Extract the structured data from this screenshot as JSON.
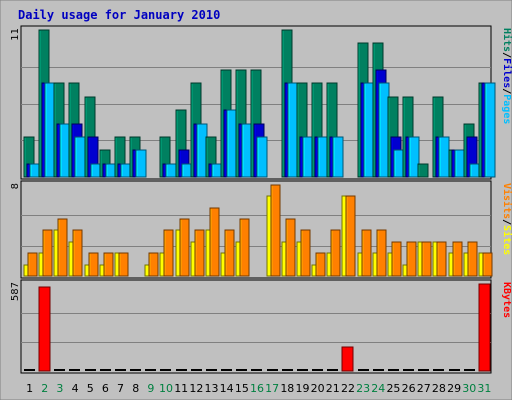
{
  "chart_data": {
    "title": "Daily usage for January 2010",
    "days": [
      "1",
      "2",
      "3",
      "4",
      "5",
      "6",
      "7",
      "8",
      "9",
      "10",
      "11",
      "12",
      "13",
      "14",
      "15",
      "16",
      "17",
      "18",
      "19",
      "20",
      "21",
      "22",
      "23",
      "24",
      "25",
      "26",
      "27",
      "28",
      "29",
      "30",
      "31"
    ],
    "weekend_days": [
      2,
      3,
      9,
      10,
      16,
      17,
      23,
      24,
      30,
      31
    ],
    "panels": [
      {
        "type": "bar",
        "ymax_label": "11",
        "ymax": 11,
        "series_labels": [
          {
            "name": "Pages",
            "color": "#00bfff"
          },
          {
            "name": "Files",
            "color": "#0000d0"
          },
          {
            "name": "Hits",
            "color": "#008060"
          }
        ],
        "series": [
          {
            "name": "Hits",
            "color": "#008060",
            "values": [
              3,
              11,
              7,
              7,
              6,
              2,
              3,
              3,
              0,
              3,
              5,
              7,
              3,
              8,
              8,
              8,
              0,
              11,
              7,
              7,
              7,
              0,
              10,
              10,
              6,
              6,
              1,
              6,
              2,
              4,
              7
            ]
          },
          {
            "name": "Files",
            "color": "#0000d0",
            "values": [
              1,
              7,
              4,
              4,
              3,
              1,
              1,
              2,
              0,
              1,
              2,
              4,
              1,
              5,
              4,
              4,
              0,
              7,
              3,
              3,
              3,
              0,
              7,
              8,
              3,
              3,
              0,
              3,
              2,
              3,
              7
            ]
          },
          {
            "name": "Pages",
            "color": "#00bfff",
            "values": [
              1,
              7,
              4,
              3,
              1,
              1,
              1,
              2,
              0,
              1,
              1,
              4,
              1,
              5,
              4,
              3,
              0,
              7,
              3,
              3,
              3,
              0,
              7,
              7,
              2,
              3,
              0,
              3,
              2,
              1,
              7
            ]
          }
        ]
      },
      {
        "type": "bar",
        "ymax_label": "8",
        "ymax": 8,
        "series_labels": [
          {
            "name": "Sites",
            "color": "#ffff00"
          },
          {
            "name": "Visits",
            "color": "#ff8000"
          }
        ],
        "series": [
          {
            "name": "Sites",
            "color": "#ffff00",
            "values": [
              1,
              2,
              4,
              3,
              1,
              1,
              2,
              0,
              1,
              2,
              4,
              3,
              4,
              2,
              3,
              0,
              7,
              3,
              3,
              1,
              2,
              7,
              2,
              2,
              2,
              1,
              3,
              3,
              2,
              2,
              2
            ]
          },
          {
            "name": "Visits",
            "color": "#ff8000",
            "values": [
              2,
              4,
              5,
              4,
              2,
              2,
              2,
              0,
              2,
              4,
              5,
              4,
              6,
              4,
              5,
              0,
              8,
              5,
              4,
              2,
              4,
              7,
              4,
              4,
              3,
              3,
              3,
              3,
              3,
              3,
              2
            ]
          }
        ]
      },
      {
        "type": "bar",
        "ymax_label": "587",
        "ymax": 587,
        "series_labels": [
          {
            "name": "KBytes",
            "color": "#ff0000"
          }
        ],
        "series": [
          {
            "name": "KBytes",
            "color": "#ff0000",
            "values": [
              0,
              570,
              0,
              0,
              0,
              0,
              0,
              0,
              0,
              0,
              0,
              0,
              0,
              0,
              0,
              0,
              0,
              0,
              0,
              0,
              0,
              160,
              0,
              0,
              0,
              0,
              0,
              0,
              0,
              0,
              587
            ]
          }
        ]
      }
    ]
  }
}
